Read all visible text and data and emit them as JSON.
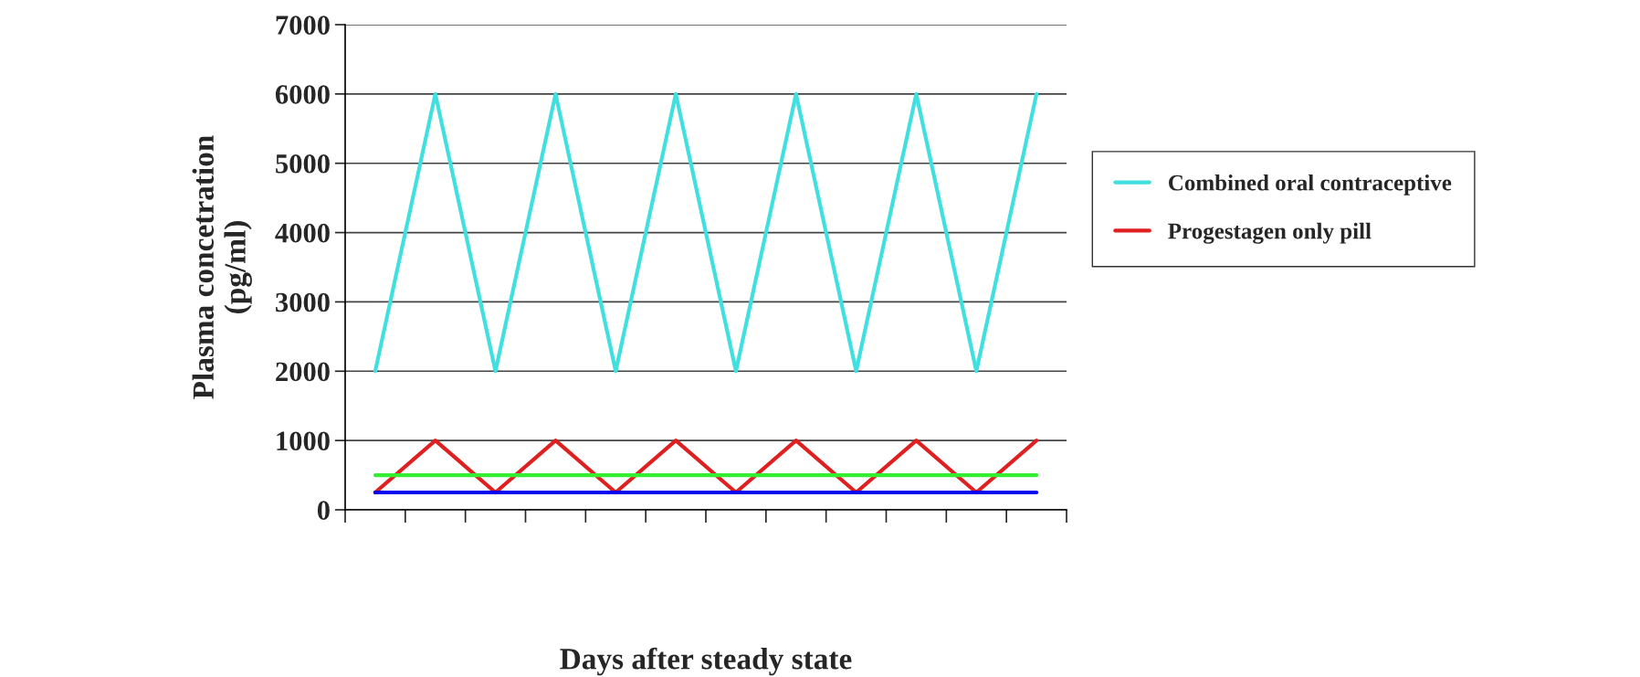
{
  "chart_data": {
    "type": "line",
    "ylabel": "Plasma concetration\n(pg/ml)",
    "xlabel": "Days after steady state",
    "categories": [
      null,
      null,
      null,
      null,
      null,
      null,
      null,
      null,
      null,
      null,
      null,
      null
    ],
    "series": [
      {
        "name": "Combined oral contraceptive",
        "color": "#40e0e0",
        "values": [
          2000,
          6000,
          2000,
          6000,
          2000,
          6000,
          2000,
          6000,
          2000,
          6000,
          2000,
          6000
        ]
      },
      {
        "name": "Progestagen only pill",
        "color": "#e02020",
        "values": [
          250,
          1000,
          250,
          1000,
          250,
          1000,
          250,
          1000,
          250,
          1000,
          250,
          1000
        ]
      },
      {
        "color": "#33ee33",
        "values": [
          500,
          500,
          500,
          500,
          500,
          500,
          500,
          500,
          500,
          500,
          500,
          500
        ]
      },
      {
        "color": "#0000ee",
        "values": [
          250,
          250,
          250,
          250,
          250,
          250,
          250,
          250,
          250,
          250,
          250,
          250
        ]
      }
    ],
    "ylim": [
      0,
      7000
    ],
    "yticks": [
      0,
      1000,
      2000,
      3000,
      4000,
      5000,
      6000,
      7000
    ],
    "grid": "y",
    "legend": "right",
    "marker": "none",
    "line_style": "solid"
  }
}
